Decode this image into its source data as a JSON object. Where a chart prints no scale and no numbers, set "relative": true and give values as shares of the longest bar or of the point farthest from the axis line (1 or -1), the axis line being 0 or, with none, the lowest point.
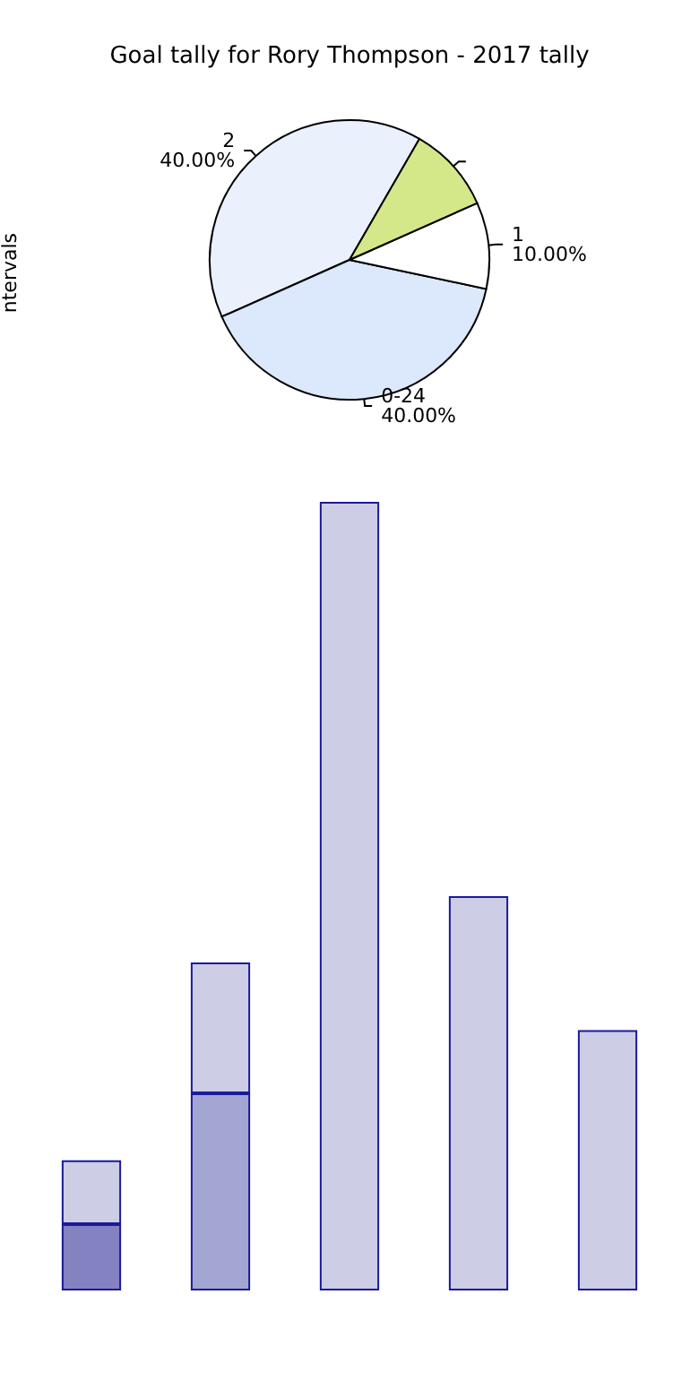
{
  "chart_data": [
    {
      "type": "pie",
      "title": "Goal tally for Rory Thompson - 2017 tally",
      "ylabel": "ntervals",
      "categories": [
        "2",
        "0-24",
        "1",
        null
      ],
      "values": [
        40,
        40,
        10,
        10
      ],
      "colors": [
        "#eaf1fd",
        "#dce8fb",
        "#ffffff",
        "#d4e88a"
      ],
      "value_labels": [
        "40.00%",
        "40.00%",
        "10.00%",
        null
      ],
      "legend": false
    },
    {
      "type": "bar",
      "relative": true,
      "stacked": true,
      "categories": [
        null,
        null,
        null,
        null,
        null
      ],
      "series": [
        {
          "color": "#8482c0",
          "values": [
            0.084,
            null,
            null,
            null,
            null
          ]
        },
        {
          "color": "#a3a5d2",
          "values": [
            null,
            0.25,
            null,
            null,
            null
          ]
        },
        {
          "color": "#cdcde5",
          "values": [
            0.081,
            0.166,
            1,
            0.5,
            0.33
          ]
        }
      ],
      "legend": false
    }
  ]
}
